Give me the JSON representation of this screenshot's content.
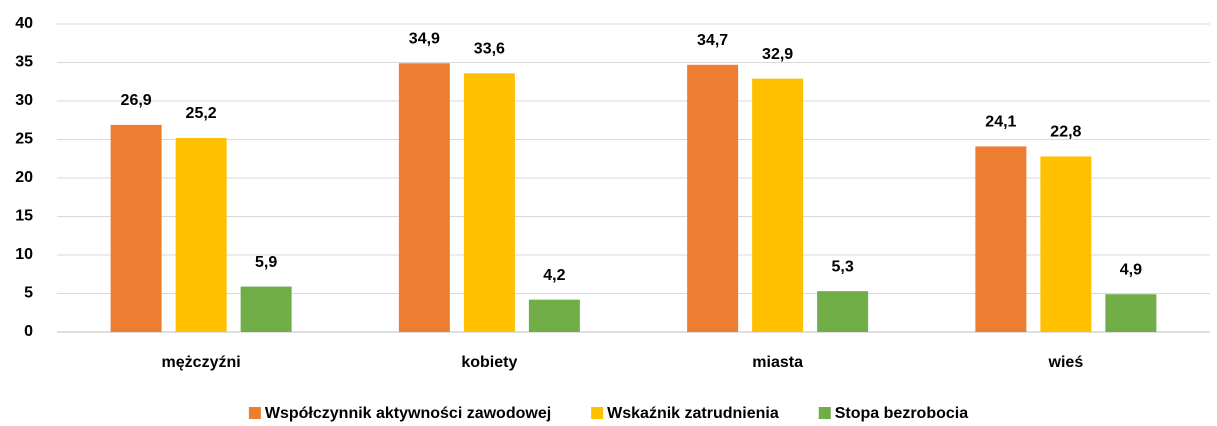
{
  "chart_data": {
    "type": "bar",
    "categories": [
      "mężczyźni",
      "kobiety",
      "miasta",
      "wieś"
    ],
    "series": [
      {
        "name": "Współczynnik aktywności zawodowej",
        "color": "#ed7d31",
        "values": [
          26.9,
          34.9,
          34.7,
          24.1
        ],
        "value_labels": [
          "26,9",
          "34,9",
          "34,7",
          "24,1"
        ]
      },
      {
        "name": "Wskaźnik zatrudnienia",
        "color": "#ffc000",
        "values": [
          25.2,
          33.6,
          32.9,
          22.8
        ],
        "value_labels": [
          "25,2",
          "33,6",
          "32,9",
          "22,8"
        ]
      },
      {
        "name": "Stopa bezrobocia",
        "color": "#70ad47",
        "values": [
          5.9,
          4.2,
          5.3,
          4.9
        ],
        "value_labels": [
          "5,9",
          "4,2",
          "5,3",
          "4,9"
        ]
      }
    ],
    "ylim": [
      0,
      40
    ],
    "yticks": [
      0,
      5,
      10,
      15,
      20,
      25,
      30,
      35,
      40
    ],
    "grid": true,
    "legend": "bottom"
  }
}
